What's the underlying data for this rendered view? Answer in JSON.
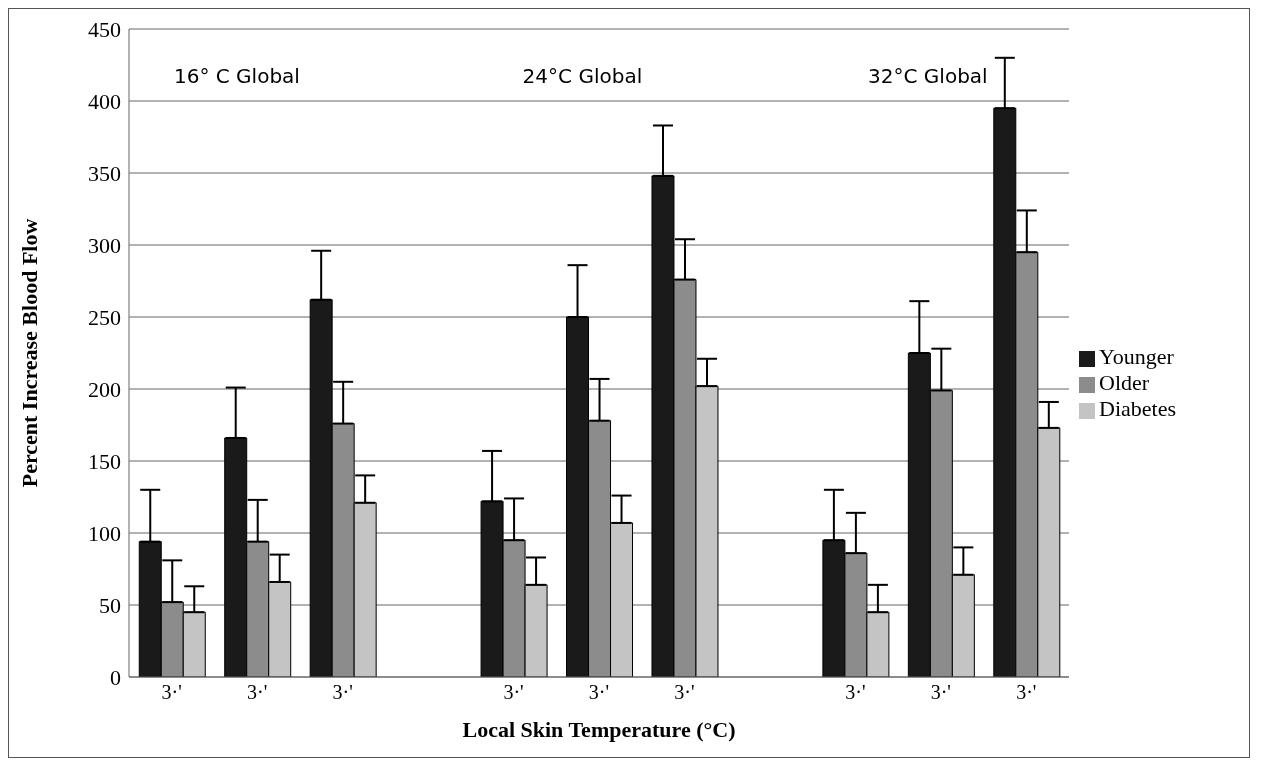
{
  "chart_data": {
    "type": "bar",
    "xlabel": "Local Skin Temperature (°C)",
    "ylabel": "Percent Increase Blood Flow",
    "categories": [
      "3·'",
      "3·'",
      "3·'",
      null,
      "3·'",
      "3·'",
      "3·'",
      null,
      "3·'",
      "3·'",
      "3·'"
    ],
    "series": [
      {
        "name": "Younger",
        "color": "#1a1a1a",
        "values": [
          94,
          166,
          262,
          null,
          122,
          250,
          348,
          null,
          95,
          225,
          395
        ],
        "errors": [
          [
            94,
            130
          ],
          [
            166,
            201
          ],
          [
            262,
            296
          ],
          null,
          [
            122,
            157
          ],
          [
            250,
            286
          ],
          [
            348,
            383
          ],
          null,
          [
            95,
            130
          ],
          [
            225,
            261
          ],
          [
            395,
            430
          ]
        ]
      },
      {
        "name": "Older",
        "color": "#8c8c8c",
        "values": [
          52,
          94,
          176,
          null,
          95,
          178,
          276,
          null,
          86,
          199,
          295
        ],
        "errors": [
          [
            52,
            81
          ],
          [
            94,
            123
          ],
          [
            176,
            205
          ],
          null,
          [
            95,
            124
          ],
          [
            178,
            207
          ],
          [
            276,
            304
          ],
          null,
          [
            86,
            114
          ],
          [
            199,
            228
          ],
          [
            295,
            324
          ]
        ]
      },
      {
        "name": "Diabetes",
        "color": "#c4c4c4",
        "values": [
          45,
          66,
          121,
          null,
          64,
          107,
          202,
          null,
          45,
          71,
          173
        ],
        "errors": [
          [
            45,
            63
          ],
          [
            66,
            85
          ],
          [
            121,
            140
          ],
          null,
          [
            64,
            83
          ],
          [
            107,
            126
          ],
          [
            202,
            221
          ],
          null,
          [
            45,
            64
          ],
          [
            71,
            90
          ],
          [
            173,
            191
          ]
        ]
      }
    ],
    "annotations": [
      "16° C Global",
      "24°C Global",
      "32°C Global"
    ],
    "ylim": [
      0,
      450
    ],
    "yticks": [
      0,
      50,
      100,
      150,
      200,
      250,
      300,
      350,
      400,
      450
    ],
    "grid": "y",
    "legend": "right"
  }
}
